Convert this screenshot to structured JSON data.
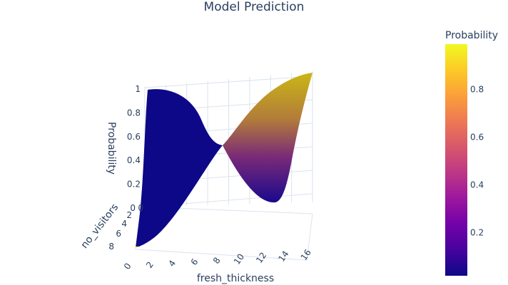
{
  "chart_data": {
    "type": "surface",
    "title": "Model Prediction",
    "x_axis": {
      "title": "fresh_thickness",
      "ticks": [
        0,
        2,
        4,
        6,
        8,
        10,
        12,
        14,
        16
      ],
      "range": [
        0,
        16
      ]
    },
    "y_axis": {
      "title": "no_visitors",
      "ticks": [
        0,
        2,
        4,
        6,
        8
      ],
      "range": [
        0,
        8
      ]
    },
    "z_axis": {
      "title": "Probability",
      "ticks": [
        0,
        0.2,
        0.4,
        0.6,
        0.8,
        1
      ],
      "range": [
        0,
        1
      ]
    },
    "colorbar": {
      "title": "Probability",
      "ticks": [
        0.2,
        0.4,
        0.6,
        0.8
      ],
      "range": [
        0.02,
        0.99
      ],
      "colorscale": [
        "#0d0887",
        "#46039f",
        "#7201a8",
        "#9c179e",
        "#bd3786",
        "#d8576b",
        "#ed7953",
        "#fb9f3a",
        "#fdca26",
        "#f0f921"
      ]
    },
    "surface_corners": [
      {
        "fresh_thickness": 0,
        "no_visitors": 0,
        "probability": 0.99
      },
      {
        "fresh_thickness": 0,
        "no_visitors": 8,
        "probability": 0.02
      },
      {
        "fresh_thickness": 16,
        "no_visitors": 0,
        "probability": 0.97
      },
      {
        "fresh_thickness": 16,
        "no_visitors": 8,
        "probability": 0.05
      }
    ],
    "crossover": {
      "fresh_thickness": 8.5,
      "probability": 0.55
    }
  }
}
